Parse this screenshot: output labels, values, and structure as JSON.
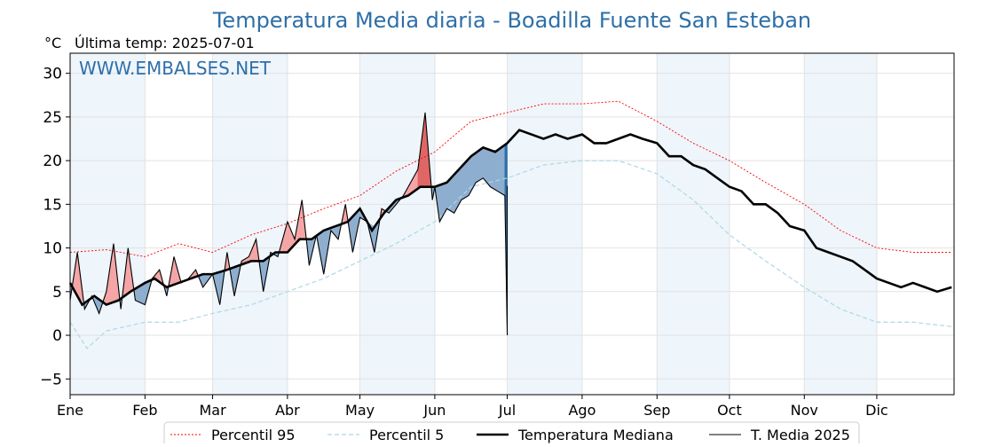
{
  "chart_data": {
    "type": "line",
    "title": "Temperatura Media diaria - Boadilla Fuente San Esteban",
    "subtitle": "Última temp: 2025-07-01",
    "ylabel": "°C",
    "watermark": "WWW.EMBALSES.NET",
    "ylim": [
      -6.8,
      32.3
    ],
    "yticks": [
      -5,
      0,
      5,
      10,
      15,
      20,
      25,
      30
    ],
    "ytick_labels": [
      "−5",
      "0",
      "5",
      "10",
      "15",
      "20",
      "25",
      "30"
    ],
    "xlim_days": [
      0,
      366
    ],
    "months": [
      "Ene",
      "Feb",
      "Mar",
      "Abr",
      "May",
      "Jun",
      "Jul",
      "Ago",
      "Sep",
      "Oct",
      "Nov",
      "Dic"
    ],
    "month_start_day": [
      0,
      31,
      59,
      90,
      120,
      151,
      181,
      212,
      243,
      273,
      304,
      334
    ],
    "grid": true,
    "legend_position": "bottom-center",
    "colors": {
      "p95": "#ff0000",
      "p5": "#add8e6",
      "median": "#000000",
      "current": "#000000",
      "above_fill": "#f4a6a6",
      "above_fill_strong": "#e06666",
      "below_fill": "#8eaecf",
      "below_fill_strong": "#2e6fa8",
      "band": "#eef5fb",
      "title": "#2e6fa8"
    },
    "series": [
      {
        "name": "Percentil 95",
        "style": "dotted-red",
        "x_days": [
          0,
          15,
          31,
          45,
          59,
          75,
          90,
          105,
          120,
          135,
          151,
          166,
          181,
          196,
          212,
          227,
          243,
          258,
          273,
          288,
          304,
          319,
          334,
          349,
          365
        ],
        "values": [
          9.5,
          9.8,
          9.0,
          10.5,
          9.5,
          11.5,
          12.8,
          14.5,
          16.0,
          18.8,
          21.0,
          24.5,
          25.5,
          26.5,
          26.5,
          26.8,
          24.5,
          22.0,
          20.0,
          17.5,
          15.0,
          12.0,
          10.0,
          9.5,
          9.5
        ]
      },
      {
        "name": "Percentil 5",
        "style": "dashed-lightblue",
        "x_days": [
          0,
          7,
          15,
          31,
          45,
          59,
          75,
          90,
          105,
          120,
          135,
          151,
          166,
          181,
          196,
          212,
          227,
          243,
          258,
          273,
          288,
          304,
          319,
          334,
          349,
          365
        ],
        "values": [
          1.5,
          -1.5,
          0.5,
          1.5,
          1.5,
          2.5,
          3.5,
          5.0,
          6.5,
          8.5,
          10.5,
          13.0,
          17.0,
          18.0,
          19.5,
          20.0,
          20.0,
          18.5,
          15.5,
          11.5,
          8.5,
          5.5,
          3.0,
          1.5,
          1.5,
          1.0
        ]
      },
      {
        "name": "Temperatura Mediana",
        "style": "thick-black",
        "x_days": [
          0,
          5,
          10,
          15,
          20,
          25,
          31,
          35,
          40,
          45,
          50,
          55,
          59,
          65,
          70,
          75,
          80,
          85,
          90,
          95,
          100,
          105,
          110,
          115,
          120,
          125,
          130,
          135,
          140,
          145,
          151,
          156,
          161,
          166,
          171,
          176,
          181,
          186,
          191,
          196,
          201,
          206,
          212,
          217,
          222,
          227,
          232,
          237,
          243,
          248,
          253,
          258,
          263,
          268,
          273,
          278,
          283,
          288,
          293,
          298,
          304,
          309,
          314,
          319,
          324,
          329,
          334,
          339,
          344,
          349,
          354,
          359,
          365
        ],
        "values": [
          6.0,
          3.5,
          4.5,
          3.5,
          4.0,
          5.0,
          6.0,
          6.5,
          5.5,
          6.0,
          6.5,
          7.0,
          7.0,
          7.5,
          8.0,
          8.5,
          8.5,
          9.5,
          9.5,
          11.0,
          11.0,
          12.0,
          12.5,
          13.0,
          14.5,
          12.0,
          14.0,
          15.5,
          16.0,
          17.0,
          17.0,
          17.5,
          19.0,
          20.5,
          21.5,
          21.0,
          22.0,
          23.5,
          23.0,
          22.5,
          23.0,
          22.5,
          23.0,
          22.0,
          22.0,
          22.5,
          23.0,
          22.5,
          22.0,
          20.5,
          20.5,
          19.5,
          19.0,
          18.0,
          17.0,
          16.5,
          15.0,
          15.0,
          14.0,
          12.5,
          12.0,
          10.0,
          9.5,
          9.0,
          8.5,
          7.5,
          6.5,
          6.0,
          5.5,
          6.0,
          5.5,
          5.0,
          5.5
        ]
      },
      {
        "name": "T. Media 2025",
        "style": "thin-black",
        "x_days": [
          0,
          3,
          6,
          9,
          12,
          15,
          18,
          21,
          24,
          27,
          31,
          34,
          37,
          40,
          43,
          46,
          49,
          52,
          55,
          59,
          62,
          65,
          68,
          71,
          74,
          77,
          80,
          83,
          86,
          90,
          93,
          96,
          99,
          102,
          105,
          108,
          111,
          114,
          117,
          120,
          123,
          126,
          129,
          132,
          135,
          138,
          141,
          144,
          147,
          150,
          151,
          153,
          156,
          159,
          162,
          165,
          168,
          171,
          174,
          177,
          180,
          181
        ],
        "values": [
          4.0,
          9.5,
          3.0,
          4.5,
          2.5,
          5.0,
          10.5,
          3.0,
          10.0,
          4.0,
          3.5,
          6.5,
          7.5,
          4.5,
          9.0,
          6.0,
          6.5,
          7.5,
          5.5,
          7.0,
          3.5,
          9.5,
          4.5,
          8.5,
          9.0,
          11.0,
          5.0,
          9.5,
          9.0,
          13.0,
          11.0,
          15.5,
          8.0,
          11.5,
          7.0,
          12.0,
          11.0,
          15.0,
          9.5,
          13.5,
          13.0,
          9.5,
          14.5,
          14.0,
          15.0,
          16.0,
          17.5,
          19.0,
          25.5,
          15.5,
          17.0,
          13.0,
          14.5,
          14.0,
          15.5,
          16.0,
          17.5,
          18.0,
          17.0,
          16.5,
          16.0,
          0.0
        ]
      }
    ],
    "legend": [
      "Percentil 95",
      "Percentil 5",
      "Temperatura Mediana",
      "T. Media 2025"
    ]
  }
}
